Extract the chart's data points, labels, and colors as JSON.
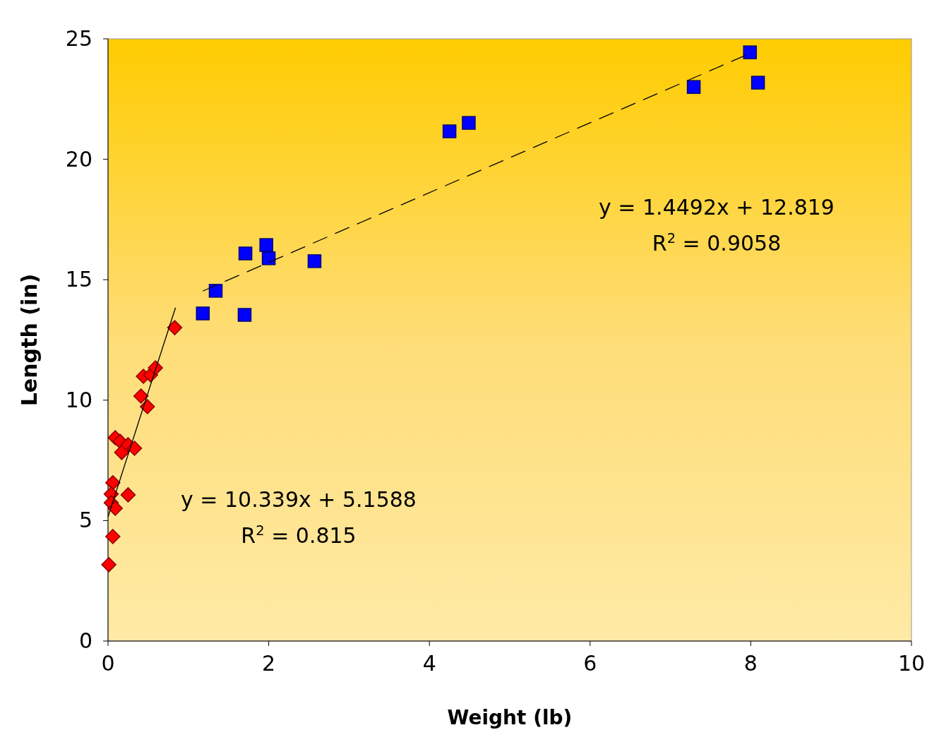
{
  "chart_data": {
    "type": "scatter",
    "xlabel": "Weight (lb)",
    "ylabel": "Length (in)",
    "xlim": [
      0,
      10
    ],
    "xticks": [
      0,
      2,
      4,
      6,
      8,
      10
    ],
    "ylim": [
      0,
      25
    ],
    "yticks": [
      0,
      5,
      10,
      15,
      20,
      25
    ],
    "grid": false,
    "series": [
      {
        "marker": "diamond",
        "color": "#ff0000",
        "x": [
          0.01,
          0.06,
          0.06,
          0.04,
          0.04,
          0.09,
          0.25,
          0.09,
          0.15,
          0.17,
          0.25,
          0.33,
          0.41,
          0.49,
          0.44,
          0.53,
          0.59,
          0.83
        ],
        "values": [
          3.17,
          4.34,
          6.57,
          6.1,
          5.74,
          5.51,
          6.07,
          8.44,
          8.29,
          7.83,
          8.15,
          8.0,
          10.17,
          9.73,
          10.99,
          11.05,
          11.34,
          13.01
        ]
      },
      {
        "marker": "square",
        "color": "#0000ff",
        "x": [
          1.18,
          1.34,
          1.7,
          1.71,
          1.97,
          2.0,
          2.57,
          4.25,
          4.49,
          7.29,
          7.99,
          8.09
        ],
        "values": [
          13.6,
          14.54,
          13.54,
          16.09,
          16.44,
          15.89,
          15.77,
          21.16,
          21.51,
          23.0,
          24.44,
          23.18
        ]
      },
      {
        "type": "line",
        "marker": "none",
        "line_style": "solid",
        "color": "#000000",
        "x": [
          0.0,
          0.84
        ],
        "values": [
          5.16,
          13.84
        ]
      },
      {
        "type": "line",
        "marker": "none",
        "line_style": "dashed",
        "color": "#000000",
        "x": [
          1.18,
          8.0
        ],
        "values": [
          14.53,
          24.41
        ]
      }
    ],
    "annotations": [
      "y = 10.339x + 5.1588",
      "R$^{2}$ = 0.815",
      "y = 1.4492x + 12.819",
      "R$^{2}$ = 0.9058"
    ]
  }
}
